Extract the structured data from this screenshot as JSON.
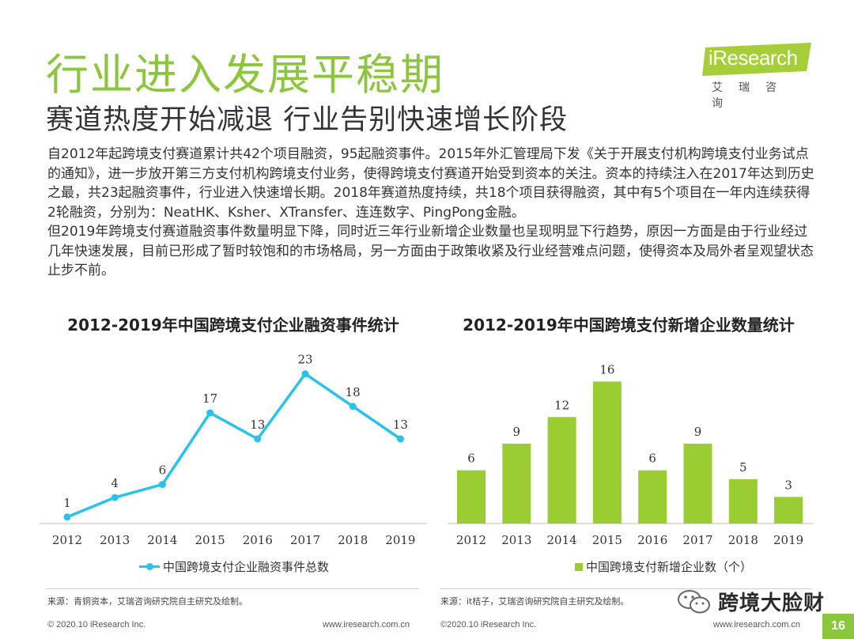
{
  "header": {
    "title": "行业进入发展平稳期",
    "subtitle": "赛道热度开始减退 行业告别快速增长阶段"
  },
  "logo": {
    "brand": "iResearch",
    "cn": "艾瑞咨询",
    "color": "#a6ce39"
  },
  "body": {
    "paragraph1": "自2012年起跨境支付赛道累计共42个项目融资，95起融资事件。2015年外汇管理局下发《关于开展支付机构跨境支付业务试点的通知》，进一步放开第三方支付机构跨境支付业务，使得跨境支付赛道开始受到资本的关注。资本的持续注入在2017年达到历史之最，共23起融资事件，行业进入快速增长期。2018年赛道热度持续，共18个项目获得融资，其中有5个项目在一年内连续获得2轮融资，分别为：NeatHK、Ksher、XTransfer、连连数字、PingPong金融。",
    "paragraph2": "但2019年跨境支付赛道融资事件数量明显下降，同时近三年行业新增企业数量也呈现明显下行趋势，原因一方面是由于行业经过几年快速发展，目前已形成了暂时较饱和的市场格局，另一方面由于政策收紧及行业经营难点问题，使得资本及局外者呈观望状态止步不前。"
  },
  "chart_data": [
    {
      "type": "line",
      "title": "2012-2019年中国跨境支付企业融资事件统计",
      "categories": [
        "2012",
        "2013",
        "2014",
        "2015",
        "2016",
        "2017",
        "2018",
        "2019"
      ],
      "series": [
        {
          "name": "中国跨境支付企业融资事件总数",
          "values": [
            1,
            4,
            6,
            17,
            13,
            23,
            18,
            13
          ],
          "color": "#29c3ea"
        }
      ],
      "ylim": [
        0,
        26
      ],
      "grid": false,
      "legend": "bottom"
    },
    {
      "type": "bar",
      "title": "2012-2019年中国跨境支付新增企业数量统计",
      "categories": [
        "2012",
        "2013",
        "2014",
        "2015",
        "2016",
        "2017",
        "2018",
        "2019"
      ],
      "series": [
        {
          "name": "中国跨境支付新增企业数（个）",
          "values": [
            6,
            9,
            12,
            16,
            6,
            9,
            5,
            3
          ],
          "color": "#9acd32"
        }
      ],
      "ylim": [
        0,
        18
      ],
      "grid": false,
      "legend": "bottom"
    }
  ],
  "sources": {
    "left": "来源：青铜资本，艾瑞咨询研究院自主研究及绘制。",
    "right": "来源：it桔子，艾瑞咨询研究院自主研究及绘制。"
  },
  "footer": {
    "copyright_left": "© 2020.10 iResearch Inc.",
    "url_left": "www.iresearch.com.cn",
    "copyright_right": "©2020.10 iResearch Inc.",
    "url_right": "www.iresearch.com.cn",
    "page_number": "16"
  },
  "watermark": {
    "text": "跨境大脸财",
    "icon": "wechat-icon"
  }
}
